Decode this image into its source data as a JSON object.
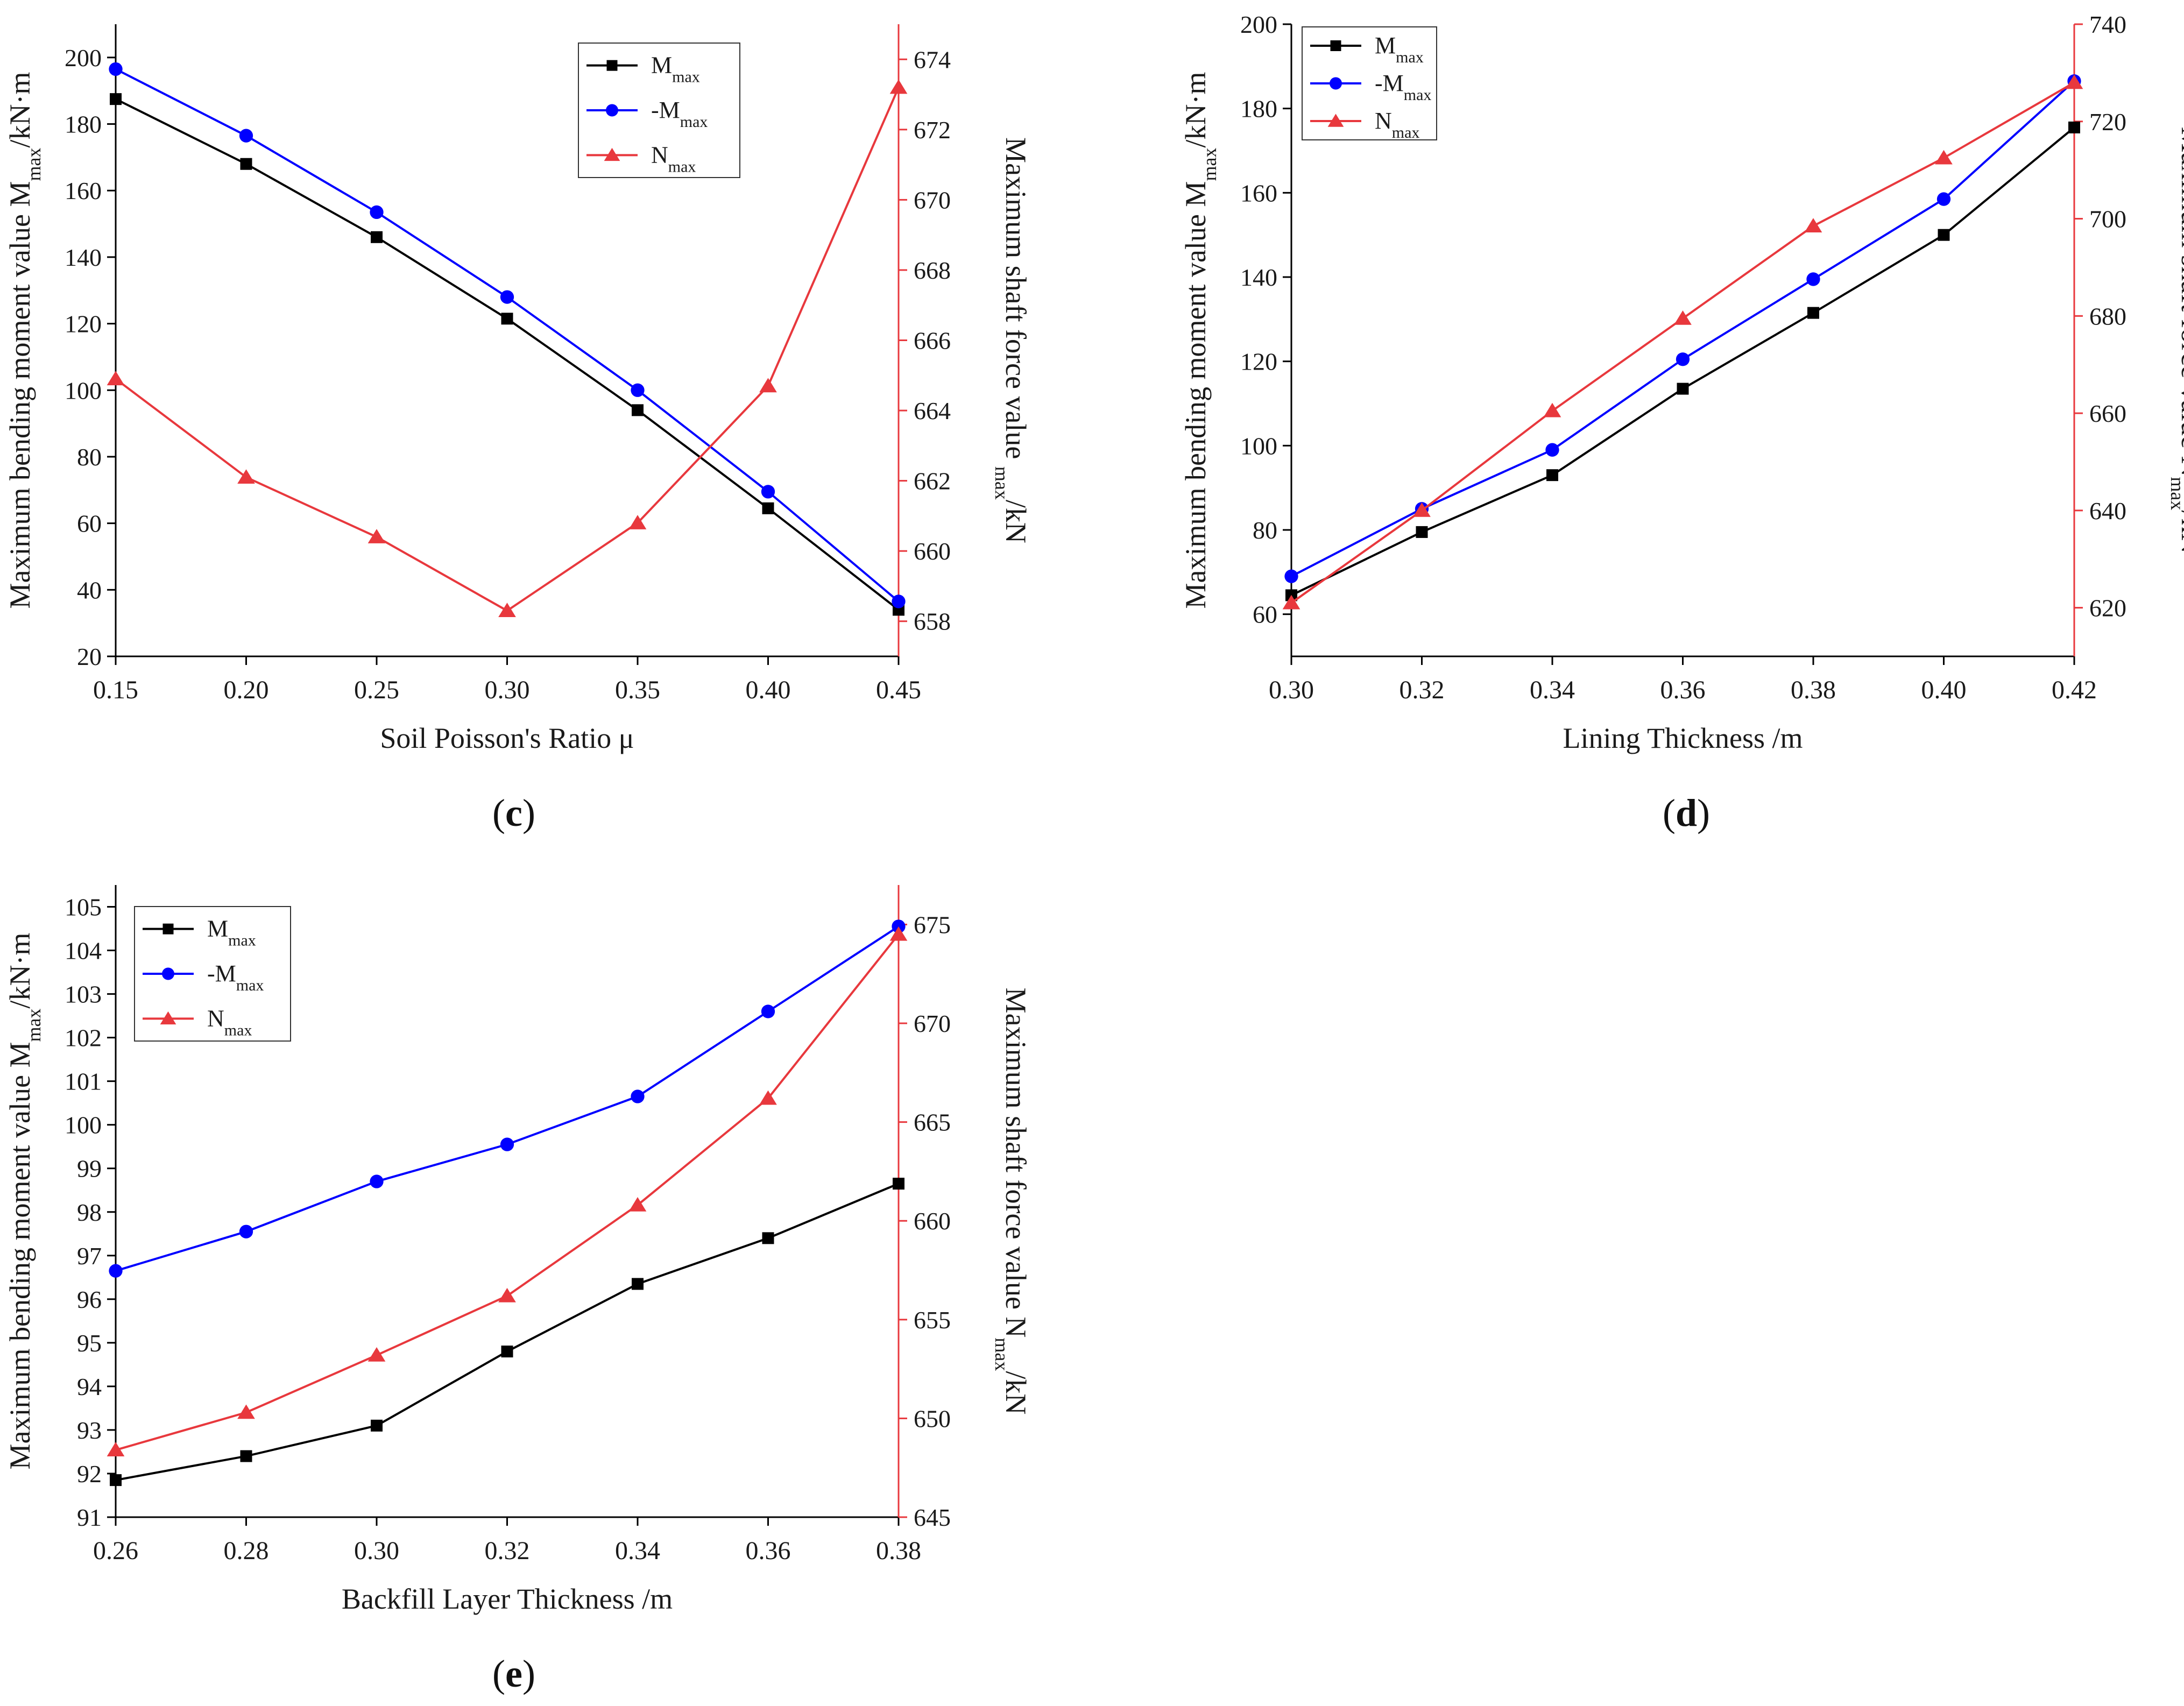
{
  "figure": {
    "captions": [
      "c",
      "d",
      "e"
    ]
  },
  "chart_data": [
    {
      "panel": "c",
      "type": "line",
      "xlabel": "Soil Poisson's Ratio μ",
      "ylabel_left": "Maximum bending moment value M_max/kN·m",
      "ylabel_right": "Maximum shaft force value _max/kN",
      "x": [
        0.15,
        0.2,
        0.25,
        0.3,
        0.35,
        0.4,
        0.45
      ],
      "xlim": [
        0.15,
        0.45
      ],
      "ylim_left": [
        20,
        210
      ],
      "ylim_right": [
        657,
        675
      ],
      "x_ticks": [
        "0.15",
        "0.20",
        "0.25",
        "0.30",
        "0.35",
        "0.40",
        "0.45"
      ],
      "y_left_ticks": [
        20,
        40,
        60,
        80,
        100,
        120,
        140,
        160,
        180,
        200
      ],
      "y_right_ticks": [
        658,
        660,
        662,
        664,
        666,
        668,
        670,
        672,
        674
      ],
      "legend_position": "top-right",
      "series": [
        {
          "name": "M_max",
          "axis": "left",
          "color": "#000000",
          "marker": "square",
          "values": [
            187.5,
            168,
            146,
            121.5,
            94,
            64.5,
            34
          ]
        },
        {
          "name": "-M_max",
          "axis": "left",
          "color": "#0000ff",
          "marker": "circle",
          "values": [
            196.5,
            176.5,
            153.5,
            128,
            100,
            69.5,
            36.5
          ]
        },
        {
          "name": "N_max",
          "axis": "right",
          "color": "#e8383d",
          "marker": "triangle",
          "values": [
            664.9,
            662.1,
            660.4,
            658.3,
            660.8,
            664.7,
            673.2
          ]
        }
      ]
    },
    {
      "panel": "d",
      "type": "line",
      "xlabel": "Lining Thickness /m",
      "ylabel_left": "Maximum bending moment value M_max/kN·m",
      "ylabel_right": "Maximum shaft force value N_max/kN",
      "x": [
        0.3,
        0.32,
        0.34,
        0.36,
        0.38,
        0.4,
        0.42
      ],
      "xlim": [
        0.3,
        0.42
      ],
      "ylim_left": [
        50,
        200
      ],
      "ylim_right": [
        610,
        740
      ],
      "x_ticks": [
        "0.30",
        "0.32",
        "0.34",
        "0.36",
        "0.38",
        "0.40",
        "0.42"
      ],
      "y_left_ticks": [
        60,
        80,
        100,
        120,
        140,
        160,
        180,
        200
      ],
      "y_right_ticks": [
        620,
        640,
        660,
        680,
        700,
        720,
        740
      ],
      "legend_position": "top-left",
      "series": [
        {
          "name": "M_max",
          "axis": "left",
          "color": "#000000",
          "marker": "square",
          "values": [
            64.5,
            79.5,
            93,
            113.5,
            131.5,
            150,
            175.5
          ]
        },
        {
          "name": "-M_max",
          "axis": "left",
          "color": "#0000ff",
          "marker": "circle",
          "values": [
            69,
            85,
            99,
            120.5,
            139.5,
            158.5,
            186.5
          ]
        },
        {
          "name": "N_max",
          "axis": "right",
          "color": "#e8383d",
          "marker": "triangle",
          "values": [
            621,
            640,
            660.5,
            679.5,
            698.5,
            712.5,
            728
          ]
        }
      ]
    },
    {
      "panel": "e",
      "type": "line",
      "xlabel": "Backfill Layer Thickness /m",
      "ylabel_left": "Maximum bending moment value M_max/kN·m",
      "ylabel_right": "Maximum shaft force value N_max/kN",
      "x": [
        0.26,
        0.28,
        0.3,
        0.32,
        0.34,
        0.36,
        0.38
      ],
      "xlim": [
        0.26,
        0.38
      ],
      "ylim_left": [
        91,
        105.5
      ],
      "ylim_right": [
        645,
        677
      ],
      "x_ticks": [
        "0.26",
        "0.28",
        "0.30",
        "0.32",
        "0.34",
        "0.36",
        "0.38"
      ],
      "y_left_ticks": [
        91,
        92,
        93,
        94,
        95,
        96,
        97,
        98,
        99,
        100,
        101,
        102,
        103,
        104,
        105
      ],
      "y_right_ticks": [
        645,
        650,
        655,
        660,
        665,
        670,
        675
      ],
      "legend_position": "top-left",
      "series": [
        {
          "name": "M_max",
          "axis": "left",
          "color": "#000000",
          "marker": "square",
          "values": [
            91.85,
            92.4,
            93.1,
            94.8,
            96.35,
            97.4,
            98.65
          ]
        },
        {
          "name": "-M_max",
          "axis": "left",
          "color": "#0000ff",
          "marker": "circle",
          "values": [
            96.65,
            97.55,
            98.7,
            99.55,
            100.65,
            102.6,
            104.55
          ]
        },
        {
          "name": "N_max",
          "axis": "right",
          "color": "#e8383d",
          "marker": "triangle",
          "values": [
            648.4,
            650.3,
            653.2,
            656.2,
            660.8,
            666.2,
            674.5
          ]
        }
      ]
    }
  ]
}
